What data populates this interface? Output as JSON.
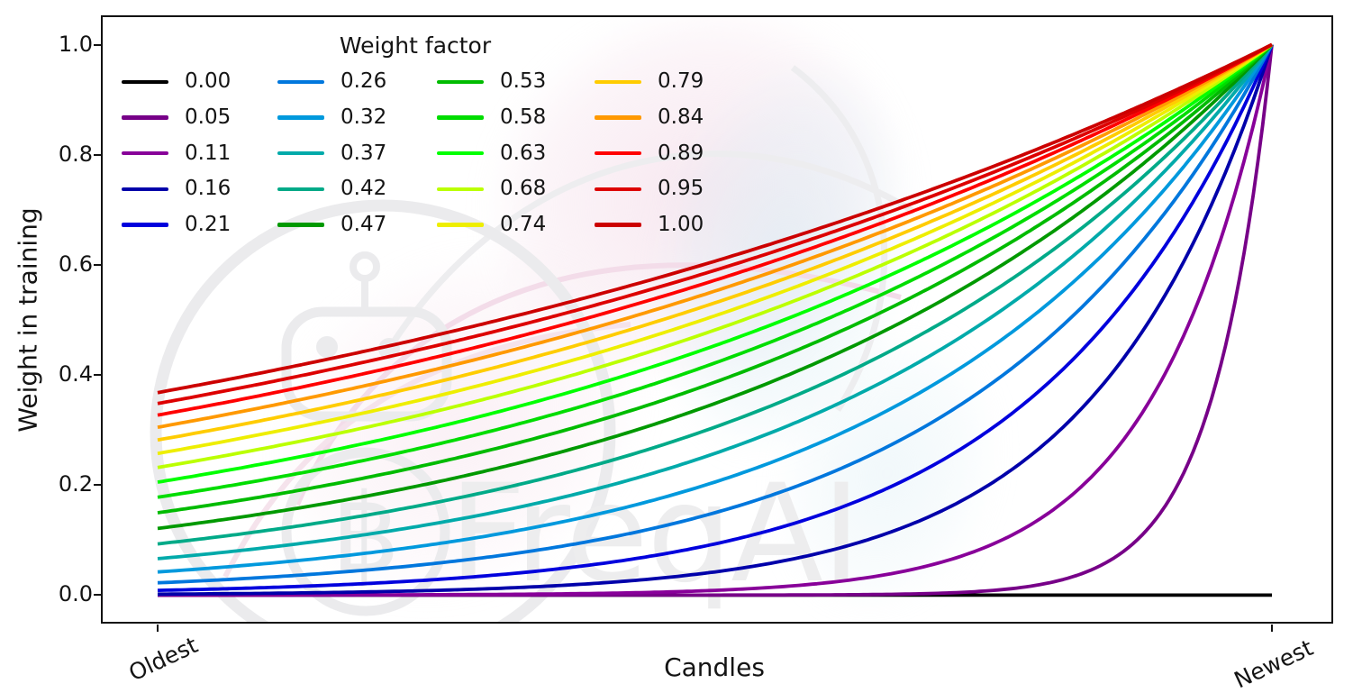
{
  "figure": {
    "background": "#ffffff",
    "border_color": "#111111"
  },
  "axes": {
    "x_label": "Candles",
    "y_label": "Weight in training",
    "x_ticks": [
      {
        "label": "Oldest",
        "value": 0
      },
      {
        "label": "Newest",
        "value": 1
      }
    ],
    "y_ticks": [
      {
        "label": "1.0",
        "value": 1.0
      },
      {
        "label": "0.8",
        "value": 0.8
      },
      {
        "label": "0.6",
        "value": 0.6
      },
      {
        "label": "0.4",
        "value": 0.4
      },
      {
        "label": "0.2",
        "value": 0.2
      },
      {
        "label": "0.0",
        "value": 0.0
      }
    ]
  },
  "legend": {
    "title": "Weight factor",
    "entries": [
      {
        "label": "0.00",
        "color": "#000000"
      },
      {
        "label": "0.05",
        "color": "#770088"
      },
      {
        "label": "0.11",
        "color": "#880099"
      },
      {
        "label": "0.16",
        "color": "#0000aa"
      },
      {
        "label": "0.21",
        "color": "#0000dd"
      },
      {
        "label": "0.26",
        "color": "#0077dd"
      },
      {
        "label": "0.32",
        "color": "#0099dd"
      },
      {
        "label": "0.37",
        "color": "#00aaaa"
      },
      {
        "label": "0.42",
        "color": "#00aa88"
      },
      {
        "label": "0.47",
        "color": "#009900"
      },
      {
        "label": "0.53",
        "color": "#00bb00"
      },
      {
        "label": "0.58",
        "color": "#00dd00"
      },
      {
        "label": "0.63",
        "color": "#00ff00"
      },
      {
        "label": "0.68",
        "color": "#bbff00"
      },
      {
        "label": "0.74",
        "color": "#eeee00"
      },
      {
        "label": "0.79",
        "color": "#ffcc00"
      },
      {
        "label": "0.84",
        "color": "#ff9900"
      },
      {
        "label": "0.89",
        "color": "#ff0000"
      },
      {
        "label": "0.95",
        "color": "#dd0000"
      },
      {
        "label": "1.00",
        "color": "#cc0000"
      }
    ]
  },
  "watermark": {
    "text": "FreqAI",
    "coin_symbol": "฿"
  },
  "chart_data": {
    "type": "line",
    "title": "",
    "xlabel": "Candles",
    "ylabel": "Weight in training",
    "legend_title": "Weight factor",
    "x_axis": {
      "kind": "normalized candle position",
      "range": [
        0,
        1
      ],
      "tick_labels": [
        "Oldest",
        "Newest"
      ]
    },
    "ylim": [
      0,
      1
    ],
    "grid": false,
    "legend_position": "upper left, 4 columns, no frame",
    "formula": "weight(x) = exp((x - 1) / factor) for factor > 0; weight(x) = 0 when factor = 0; x runs 0 (oldest candle) to 1 (newest candle)",
    "series": [
      {
        "name": "0.00",
        "factor": 0.0,
        "color": "#000000",
        "left_value": 0.0,
        "right_value": 0.0
      },
      {
        "name": "0.05",
        "factor": 0.0526,
        "color": "#770088",
        "left_value": 0.0,
        "right_value": 1.0
      },
      {
        "name": "0.11",
        "factor": 0.1053,
        "color": "#880099",
        "left_value": 0.0001,
        "right_value": 1.0
      },
      {
        "name": "0.16",
        "factor": 0.1579,
        "color": "#0000aa",
        "left_value": 0.0018,
        "right_value": 1.0
      },
      {
        "name": "0.21",
        "factor": 0.2105,
        "color": "#0000dd",
        "left_value": 0.0087,
        "right_value": 1.0
      },
      {
        "name": "0.26",
        "factor": 0.2632,
        "color": "#0077dd",
        "left_value": 0.0224,
        "right_value": 1.0
      },
      {
        "name": "0.32",
        "factor": 0.3158,
        "color": "#0099dd",
        "left_value": 0.0421,
        "right_value": 1.0
      },
      {
        "name": "0.37",
        "factor": 0.3684,
        "color": "#00aaaa",
        "left_value": 0.0663,
        "right_value": 1.0
      },
      {
        "name": "0.42",
        "factor": 0.4211,
        "color": "#00aa88",
        "left_value": 0.093,
        "right_value": 1.0
      },
      {
        "name": "0.47",
        "factor": 0.4737,
        "color": "#009900",
        "left_value": 0.1211,
        "right_value": 1.0
      },
      {
        "name": "0.53",
        "factor": 0.5263,
        "color": "#00bb00",
        "left_value": 0.1496,
        "right_value": 1.0
      },
      {
        "name": "0.58",
        "factor": 0.5789,
        "color": "#00dd00",
        "left_value": 0.1778,
        "right_value": 1.0
      },
      {
        "name": "0.63",
        "factor": 0.6316,
        "color": "#00ff00",
        "left_value": 0.2053,
        "right_value": 1.0
      },
      {
        "name": "0.68",
        "factor": 0.6842,
        "color": "#bbff00",
        "left_value": 0.2319,
        "right_value": 1.0
      },
      {
        "name": "0.74",
        "factor": 0.7368,
        "color": "#eeee00",
        "left_value": 0.2574,
        "right_value": 1.0
      },
      {
        "name": "0.79",
        "factor": 0.7895,
        "color": "#ffcc00",
        "left_value": 0.2817,
        "right_value": 1.0
      },
      {
        "name": "0.84",
        "factor": 0.8421,
        "color": "#ff9900",
        "left_value": 0.305,
        "right_value": 1.0
      },
      {
        "name": "0.89",
        "factor": 0.8947,
        "color": "#ff0000",
        "left_value": 0.327,
        "right_value": 1.0
      },
      {
        "name": "0.95",
        "factor": 0.9474,
        "color": "#dd0000",
        "left_value": 0.348,
        "right_value": 1.0
      },
      {
        "name": "1.00",
        "factor": 1.0,
        "color": "#cc0000",
        "left_value": 0.3679,
        "right_value": 1.0
      }
    ]
  }
}
